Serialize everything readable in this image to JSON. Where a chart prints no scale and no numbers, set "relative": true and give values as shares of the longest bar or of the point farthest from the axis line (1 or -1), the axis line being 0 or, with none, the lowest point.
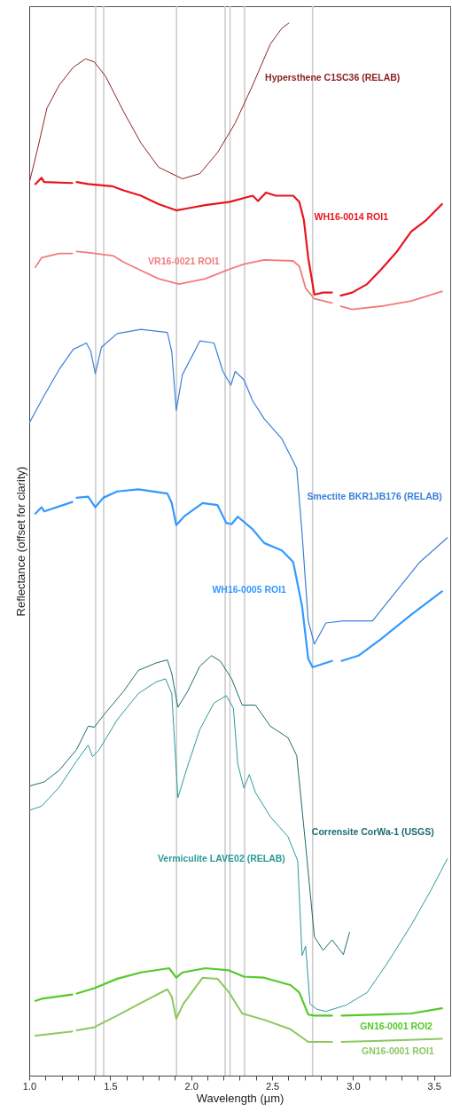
{
  "chart_data": {
    "type": "line",
    "xlabel": "Wavelength (µm)",
    "ylabel": "Reflectance (offset for clarity)",
    "relative": true,
    "tick_labels": "x",
    "xlim": [
      1.0,
      3.6
    ],
    "xticks": [
      {
        "value": 1.0,
        "label": "1.0"
      },
      {
        "value": 1.1,
        "label": null
      },
      {
        "value": 1.2,
        "label": null
      },
      {
        "value": 1.3,
        "label": null
      },
      {
        "value": 1.4,
        "label": null
      },
      1.5,
      {
        "value": 1.6,
        "label": null
      },
      {
        "value": 1.7,
        "label": null
      },
      {
        "value": 1.8,
        "label": null
      },
      {
        "value": 1.9,
        "label": null
      },
      {
        "value": 2.0,
        "label": "2.0"
      },
      {
        "value": 2.1,
        "label": null
      },
      {
        "value": 2.2,
        "label": null
      },
      {
        "value": 2.3,
        "label": null
      },
      {
        "value": 2.4,
        "label": null
      },
      2.5,
      {
        "value": 2.6,
        "label": null
      },
      {
        "value": 2.7,
        "label": null
      },
      {
        "value": 2.8,
        "label": null
      },
      {
        "value": 2.9,
        "label": null
      },
      {
        "value": 3.0,
        "label": "3.0"
      },
      {
        "value": 3.1,
        "label": null
      },
      {
        "value": 3.2,
        "label": null
      },
      {
        "value": 3.3,
        "label": null
      },
      {
        "value": 3.4,
        "label": null
      },
      3.5
    ],
    "series": [
      {
        "name": "Hypersthene C1SC36 (RELAB)",
        "color": "#8b2323",
        "x": [
          1.0,
          1.054,
          1.109,
          1.185,
          1.272,
          1.348,
          1.402,
          1.473,
          1.582,
          1.69,
          1.799,
          1.946,
          2.054,
          2.163,
          2.272,
          2.38,
          2.489,
          2.56,
          2.603
        ],
        "values": [
          0.848,
          0.882,
          0.919,
          0.941,
          0.958,
          0.966,
          0.963,
          0.949,
          0.916,
          0.886,
          0.863,
          0.852,
          0.857,
          0.877,
          0.905,
          0.941,
          0.98,
          0.995,
          1.0
        ]
      },
      {
        "name": "WH16-0014 ROI1",
        "color": "#e8141e",
        "x": [
          1.038,
          1.076,
          1.092,
          1.266,
          1.28,
          1.293,
          1.364,
          1.511,
          1.582,
          1.69,
          1.799,
          1.908,
          1.978,
          2.087,
          2.234,
          2.38,
          2.413,
          2.462,
          2.522,
          2.63,
          2.668,
          2.696,
          2.723,
          2.761,
          2.815,
          2.87,
          2.897,
          2.924,
          2.995,
          3.087,
          3.174,
          3.266,
          3.359,
          3.446,
          3.549
        ],
        "values": [
          0.847,
          0.853,
          0.849,
          0.848,
          null,
          0.849,
          0.847,
          0.845,
          0.841,
          0.836,
          0.828,
          0.822,
          0.824,
          0.827,
          0.83,
          0.836,
          0.831,
          0.839,
          0.836,
          0.836,
          0.83,
          0.813,
          0.777,
          0.742,
          0.744,
          0.744,
          null,
          0.741,
          0.744,
          0.752,
          0.766,
          0.782,
          0.802,
          0.812,
          0.828
        ]
      },
      {
        "name": "VR16-0021 ROI1",
        "color": "#f47a7a",
        "x": [
          1.038,
          1.076,
          1.185,
          1.266,
          1.28,
          1.293,
          1.364,
          1.516,
          1.582,
          1.69,
          1.799,
          1.924,
          2.087,
          2.234,
          2.326,
          2.451,
          2.63,
          2.668,
          2.707,
          2.761,
          2.87,
          2.897,
          2.924,
          2.995,
          3.174,
          3.359,
          3.549
        ],
        "values": [
          0.768,
          0.777,
          0.781,
          0.781,
          null,
          0.783,
          0.782,
          0.779,
          0.773,
          0.765,
          0.757,
          0.752,
          0.757,
          0.766,
          0.771,
          0.775,
          0.774,
          0.769,
          0.748,
          0.738,
          0.734,
          null,
          0.731,
          0.728,
          0.731,
          0.736,
          0.745
        ]
      },
      {
        "name": "Smectite BKR1JB176 (RELAB)",
        "color": "#3a80d8",
        "x": [
          1.0,
          1.092,
          1.185,
          1.272,
          1.353,
          1.38,
          1.408,
          1.446,
          1.543,
          1.69,
          1.853,
          1.88,
          1.908,
          1.946,
          2.054,
          2.141,
          2.196,
          2.245,
          2.272,
          2.326,
          2.38,
          2.451,
          2.56,
          2.652,
          2.685,
          2.723,
          2.761,
          2.832,
          2.94,
          3.033,
          3.12,
          3.266,
          3.413,
          3.582
        ],
        "values": [
          0.62,
          0.646,
          0.671,
          0.69,
          0.696,
          0.688,
          0.667,
          0.692,
          0.705,
          0.709,
          0.706,
          0.688,
          0.632,
          0.666,
          0.698,
          0.696,
          0.669,
          0.656,
          0.669,
          0.661,
          0.641,
          0.624,
          0.605,
          0.577,
          0.515,
          0.432,
          0.41,
          0.43,
          0.432,
          0.432,
          0.432,
          0.46,
          0.488,
          0.511
        ]
      },
      {
        "name": "WH16-0005 ROI1",
        "color": "#3399ff",
        "x": [
          1.038,
          1.076,
          1.092,
          1.266,
          1.28,
          1.293,
          1.364,
          1.408,
          1.457,
          1.543,
          1.674,
          1.853,
          1.88,
          1.908,
          1.962,
          2.071,
          2.163,
          2.217,
          2.25,
          2.288,
          2.38,
          2.451,
          2.56,
          2.63,
          2.685,
          2.723,
          2.75,
          2.87,
          2.9,
          2.929,
          3.033,
          3.174,
          3.359,
          3.549
        ],
        "values": [
          0.534,
          0.54,
          0.536,
          0.545,
          null,
          0.549,
          0.55,
          0.54,
          0.549,
          0.555,
          0.557,
          0.553,
          0.544,
          0.523,
          0.532,
          0.544,
          0.542,
          0.525,
          0.524,
          0.531,
          0.519,
          0.506,
          0.499,
          0.488,
          0.446,
          0.396,
          0.388,
          0.394,
          null,
          0.394,
          0.399,
          0.415,
          0.438,
          0.46
        ]
      },
      {
        "name": "Corrensite CorWa-1 (USGS)",
        "color": "#1f6b6b",
        "x": [
          1.0,
          1.092,
          1.185,
          1.293,
          1.364,
          1.402,
          1.457,
          1.582,
          1.674,
          1.783,
          1.853,
          1.88,
          1.918,
          1.978,
          2.054,
          2.125,
          2.179,
          2.25,
          2.315,
          2.397,
          2.489,
          2.598,
          2.652,
          2.707,
          2.761,
          2.815,
          2.87,
          2.94,
          2.978
        ],
        "values": [
          0.275,
          0.279,
          0.29,
          0.31,
          0.332,
          0.331,
          0.342,
          0.365,
          0.385,
          0.392,
          0.395,
          0.382,
          0.35,
          0.365,
          0.389,
          0.399,
          0.394,
          0.377,
          0.352,
          0.352,
          0.332,
          0.321,
          0.304,
          0.219,
          0.132,
          0.119,
          0.129,
          0.115,
          0.136
        ]
      },
      {
        "name": "Vermiculite LAVE02 (RELAB)",
        "color": "#2a9a9a",
        "x": [
          1.0,
          1.076,
          1.185,
          1.293,
          1.364,
          1.391,
          1.429,
          1.543,
          1.674,
          1.783,
          1.842,
          1.88,
          1.918,
          1.978,
          2.054,
          2.141,
          2.217,
          2.261,
          2.288,
          2.326,
          2.359,
          2.397,
          2.489,
          2.598,
          2.658,
          2.685,
          2.707,
          2.734,
          2.777,
          2.832,
          2.957,
          3.087,
          3.212,
          3.359,
          3.484,
          3.582
        ],
        "values": [
          0.252,
          0.256,
          0.274,
          0.299,
          0.314,
          0.303,
          0.309,
          0.338,
          0.363,
          0.374,
          0.377,
          0.363,
          0.264,
          0.294,
          0.329,
          0.354,
          0.361,
          0.349,
          0.296,
          0.273,
          0.286,
          0.269,
          0.246,
          0.227,
          0.204,
          0.114,
          0.123,
          0.068,
          0.063,
          0.061,
          0.067,
          0.079,
          0.107,
          0.143,
          0.177,
          0.206
        ]
      },
      {
        "name": "GN16-0001 ROI2",
        "color": "#55c928",
        "x": [
          1.038,
          1.076,
          1.266,
          1.28,
          1.293,
          1.402,
          1.543,
          1.69,
          1.864,
          1.908,
          1.946,
          2.087,
          2.234,
          2.326,
          2.451,
          2.614,
          2.668,
          2.723,
          2.761,
          2.87,
          2.9,
          2.929,
          3.174,
          3.359,
          3.549
        ],
        "values": [
          0.071,
          0.073,
          0.077,
          null,
          0.078,
          0.083,
          0.092,
          0.098,
          0.102,
          0.093,
          0.098,
          0.102,
          0.1,
          0.094,
          0.093,
          0.086,
          0.079,
          0.058,
          0.057,
          0.057,
          null,
          0.057,
          0.058,
          0.059,
          0.064
        ]
      },
      {
        "name": "GN16-0001 ROI1",
        "color": "#8dc860",
        "x": [
          1.038,
          1.266,
          1.28,
          1.293,
          1.402,
          1.543,
          1.69,
          1.853,
          1.88,
          1.908,
          1.951,
          2.071,
          2.163,
          2.234,
          2.315,
          2.451,
          2.614,
          2.723,
          2.87,
          2.9,
          2.929,
          3.174,
          3.549
        ],
        "values": [
          0.038,
          0.042,
          null,
          0.043,
          0.046,
          0.057,
          0.069,
          0.082,
          0.075,
          0.054,
          0.068,
          0.093,
          0.092,
          0.079,
          0.059,
          0.053,
          0.044,
          0.032,
          0.032,
          null,
          0.032,
          0.033,
          0.035
        ]
      }
    ],
    "ref_lines": [
      {
        "axis": "x",
        "value": 1.41,
        "color": "#cccccc"
      },
      {
        "axis": "x",
        "value": 1.46,
        "color": "#cccccc"
      },
      {
        "axis": "x",
        "value": 1.91,
        "color": "#cccccc"
      },
      {
        "axis": "x",
        "value": 2.21,
        "color": "#cccccc"
      },
      {
        "axis": "x",
        "value": 2.24,
        "color": "#cccccc"
      },
      {
        "axis": "x",
        "value": 2.33,
        "color": "#cccccc"
      },
      {
        "axis": "x",
        "value": 2.75,
        "color": "#cccccc"
      }
    ]
  }
}
